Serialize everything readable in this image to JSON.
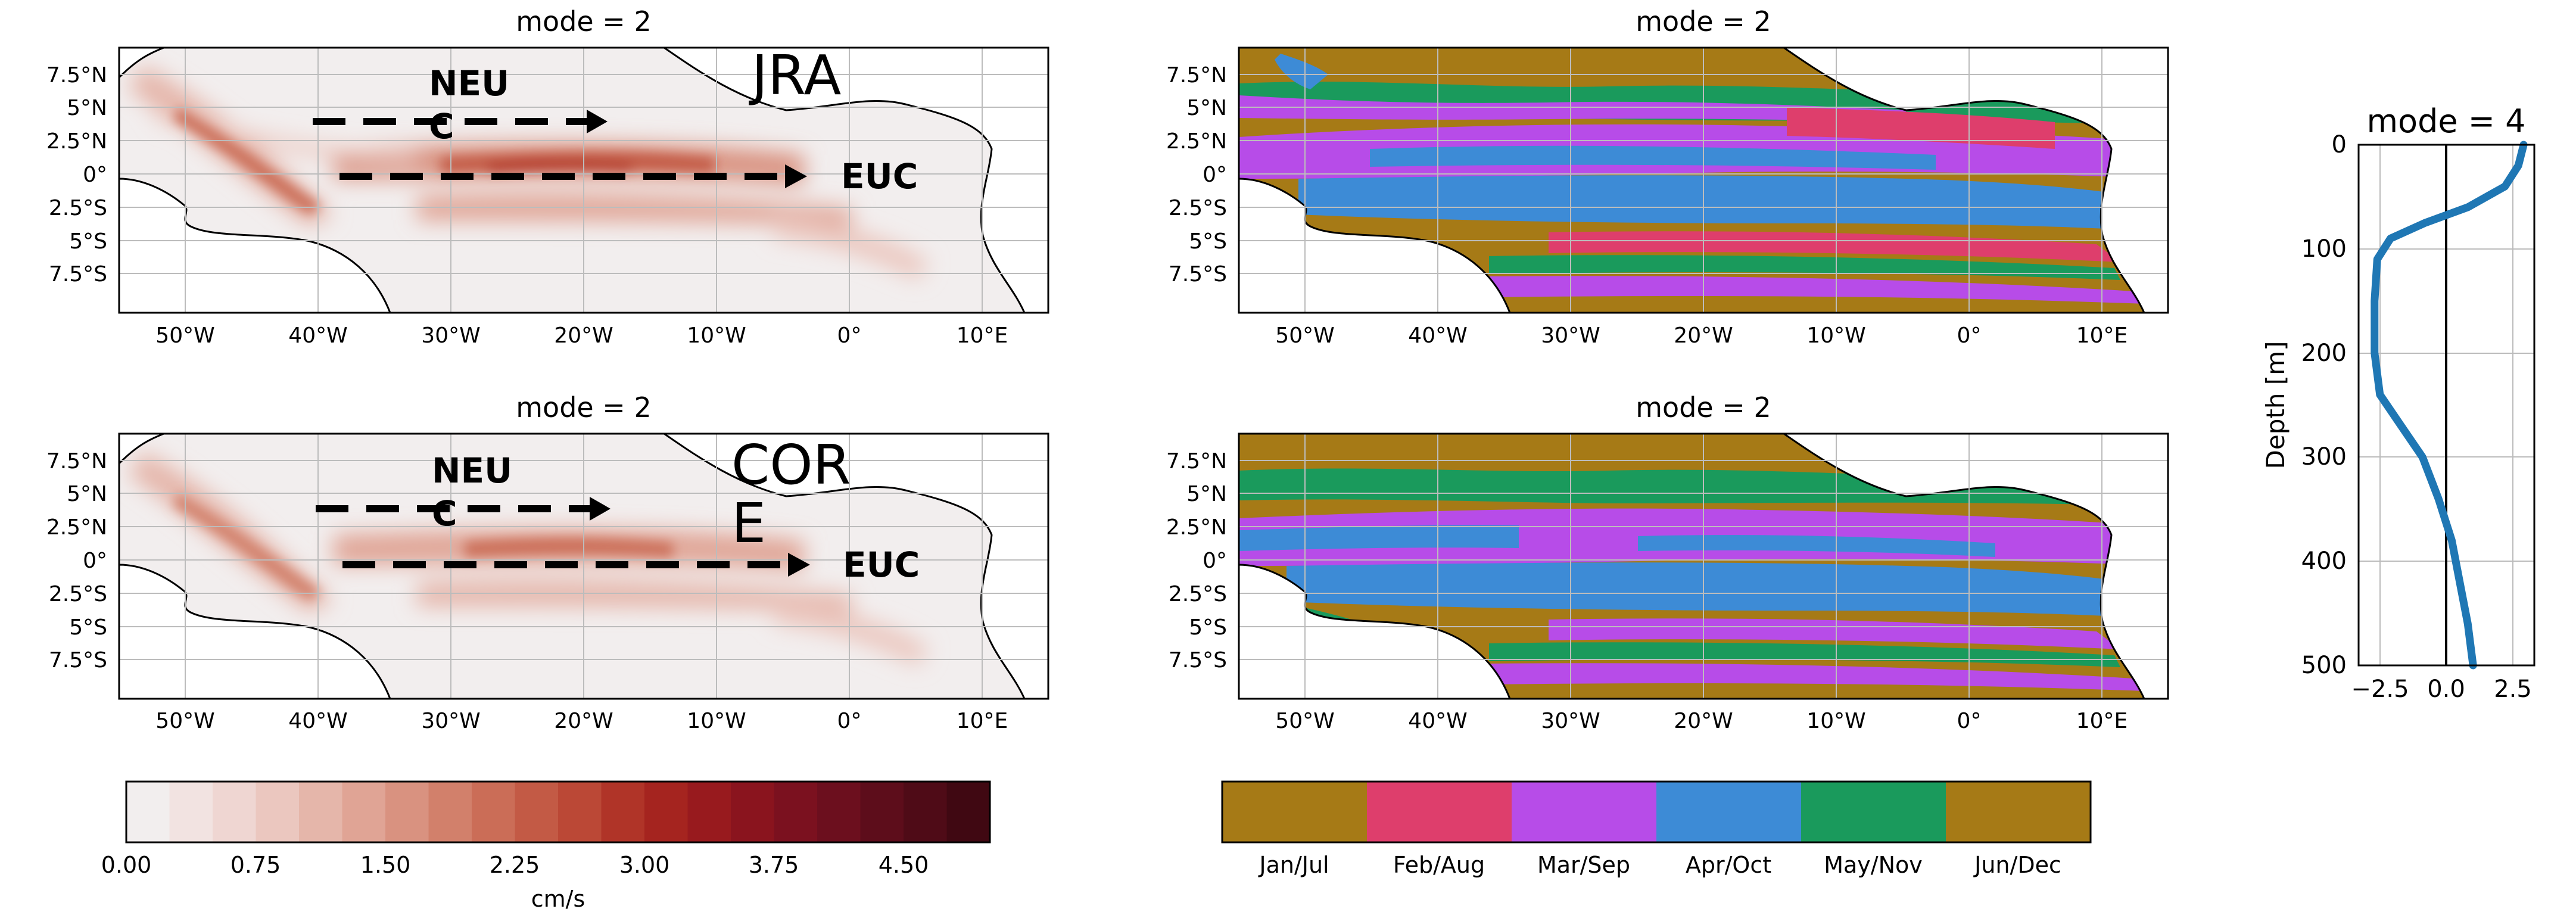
{
  "chart_data": [
    {
      "type": "heatmap",
      "title": "mode = 2",
      "annotation": "JRA",
      "arrows": [
        {
          "label": "NEU",
          "label2": "C",
          "lon_start": -40,
          "lon_end": -17,
          "lat": 4.2
        },
        {
          "label": "EUC",
          "lon_start": -38,
          "lon_end": -3,
          "lat": 0
        }
      ],
      "xticks": [
        "50°W",
        "40°W",
        "30°W",
        "20°W",
        "10°W",
        "0°",
        "10°E"
      ],
      "yticks": [
        "7.5°N",
        "5°N",
        "2.5°N",
        "0°",
        "2.5°S",
        "5°S",
        "7.5°S"
      ],
      "xlim": [
        -55,
        15
      ],
      "ylim": [
        -10,
        10
      ],
      "colormap": "Reds"
    },
    {
      "type": "heatmap",
      "title": "mode = 2",
      "annotation": "COR",
      "annotation2": "E",
      "arrows": [
        {
          "label": "NEU",
          "label2": "C",
          "lon_start": -40,
          "lon_end": -17,
          "lat": 4.2
        },
        {
          "label": "EUC",
          "lon_start": -38,
          "lon_end": -3,
          "lat": 0
        }
      ],
      "xticks": [
        "50°W",
        "40°W",
        "30°W",
        "20°W",
        "10°W",
        "0°",
        "10°E"
      ],
      "yticks": [
        "7.5°N",
        "5°N",
        "2.5°N",
        "0°",
        "2.5°S",
        "5°S",
        "7.5°S"
      ],
      "xlim": [
        -55,
        15
      ],
      "ylim": [
        -10,
        10
      ],
      "colormap": "Reds"
    },
    {
      "type": "heatmap",
      "title": "mode = 2",
      "xticks": [
        "50°W",
        "40°W",
        "30°W",
        "20°W",
        "10°W",
        "0°",
        "10°E"
      ],
      "yticks": [
        "7.5°N",
        "5°N",
        "2.5°N",
        "0°",
        "2.5°S",
        "5°S",
        "7.5°S"
      ],
      "xlim": [
        -55,
        15
      ],
      "ylim": [
        -10,
        10
      ],
      "colormap": "categorical months"
    },
    {
      "type": "heatmap",
      "title": "mode = 2",
      "xticks": [
        "50°W",
        "40°W",
        "30°W",
        "20°W",
        "10°W",
        "0°",
        "10°E"
      ],
      "yticks": [
        "7.5°N",
        "5°N",
        "2.5°N",
        "0°",
        "2.5°S",
        "5°S",
        "7.5°S"
      ],
      "xlim": [
        -55,
        15
      ],
      "ylim": [
        -10,
        10
      ],
      "colormap": "categorical months"
    },
    {
      "type": "line",
      "title": "mode = 4",
      "ylabel": "Depth [m]",
      "xticks": [
        "−2.5",
        "0.0",
        "2.5"
      ],
      "yticks": [
        "0",
        "100",
        "200",
        "300",
        "400",
        "500"
      ],
      "xlim": [
        -3.3,
        3.3
      ],
      "ylim": [
        500,
        0
      ],
      "grid": true,
      "series": [
        {
          "color": "#1f77b4",
          "x": [
            2.9,
            2.7,
            2.2,
            0.8,
            -0.8,
            -2.1,
            -2.6,
            -2.7,
            -2.7,
            -2.5,
            -1.7,
            -0.9,
            -0.3,
            0.2,
            0.5,
            0.8,
            1.0
          ],
          "y": [
            0,
            20,
            40,
            60,
            75,
            90,
            110,
            150,
            200,
            240,
            270,
            300,
            340,
            380,
            420,
            460,
            500
          ]
        }
      ],
      "zero_line": 0
    }
  ],
  "colorbars": [
    {
      "ticks": [
        "0.00",
        "0.75",
        "1.50",
        "2.25",
        "3.00",
        "3.75",
        "4.50"
      ],
      "label": "cm/s",
      "min": 0,
      "max": 5,
      "levels": 20
    },
    {
      "categories": [
        "Jan/Jul",
        "Feb/Aug",
        "Mar/Sep",
        "Apr/Oct",
        "May/Nov",
        "Jun/Dec"
      ],
      "colors": [
        "#a67a16",
        "#de3e6c",
        "#b74ce8",
        "#3d8bd6",
        "#1a9a5c",
        "#a67a16"
      ]
    }
  ],
  "colors": {
    "reds": [
      "#f2eeee",
      "#f2e3e1",
      "#efd6d2",
      "#ebc7bf",
      "#e5b6aa",
      "#e0a495",
      "#d99280",
      "#d2806b",
      "#cb6d57",
      "#c35a45",
      "#bb4836",
      "#b03428",
      "#a5241f",
      "#981a1e",
      "#8a141e",
      "#7b111f",
      "#6c0f1e",
      "#5d0d1b",
      "#4f0b17",
      "#400812"
    ]
  }
}
